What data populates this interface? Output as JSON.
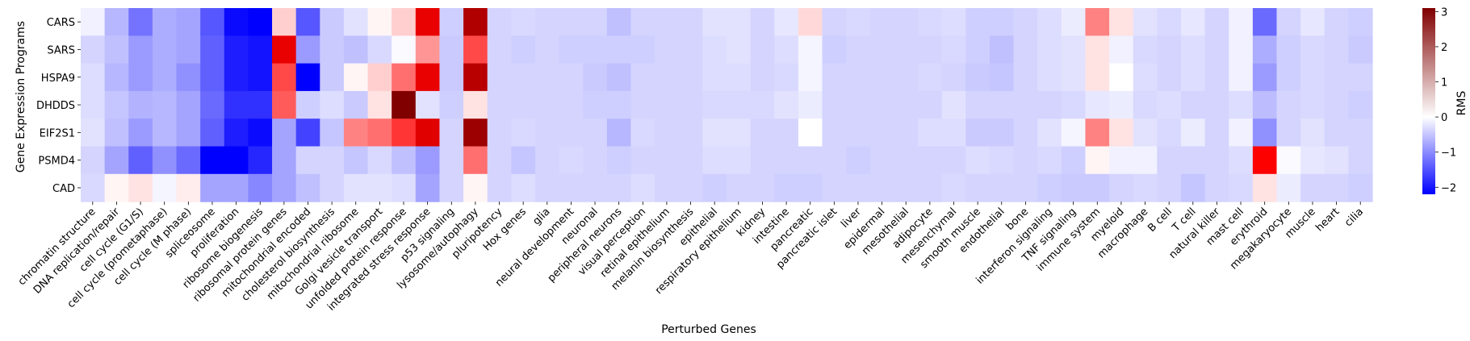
{
  "chart_data": {
    "type": "heatmap",
    "xlabel": "Perturbed Genes",
    "ylabel": "Gene Expression Programs",
    "colorbar_label": "RMS",
    "colormap": "bwr",
    "vmin": -2.2,
    "vmax": 3.1,
    "colorbar_ticks": [
      -2,
      -1,
      0,
      1,
      2,
      3
    ],
    "rows": [
      "CARS",
      "SARS",
      "HSPA9",
      "DHDDS",
      "EIF2S1",
      "PSMD4",
      "CAD"
    ],
    "columns": [
      "chromatin structure",
      "DNA replication/repair",
      "cell cycle (G1/S)",
      "cell cycle (prometaphase)",
      "cell cycle (M phase)",
      "spliceosome",
      "proliferation",
      "ribosome biogenesis",
      "ribosomal protein genes",
      "mitochondrial encoded",
      "cholesterol biosynthesis",
      "mitochondrial ribosome",
      "Golgi vesicle transport",
      "unfolded protein response",
      "integrated stress response",
      "p53 signaling",
      "lysosome/autophagy",
      "pluripotency",
      "Hox genes",
      "glia",
      "neural development",
      "neuronal",
      "peripheral neurons",
      "visual perception",
      "retinal epithelium",
      "melanin biosynthesis",
      "epithelial",
      "respiratory epithelium",
      "kidney",
      "intestine",
      "pancreatic",
      "pancreatic islet",
      "liver",
      "epidermal",
      "mesothelial",
      "adipocyte",
      "mesenchymal",
      "smooth muscle",
      "endothelial",
      "bone",
      "interferon signaling",
      "TNF signaling",
      "immune system",
      "myeloid",
      "macrophage",
      "B cell",
      "T cell",
      "natural killer",
      "mast cell",
      "erythroid",
      "megakaryocyte",
      "muscle",
      "heart",
      "cilia"
    ],
    "values": [
      [
        0.3,
        -0.3,
        -1.0,
        -0.4,
        -0.5,
        -1.3,
        -2.1,
        -2.2,
        0.7,
        -1.3,
        -0.1,
        0.15,
        0.5,
        0.7,
        2.0,
        -0.05,
        2.6,
        0.0,
        0.05,
        0.0,
        0.0,
        0.0,
        -0.2,
        0.0,
        0.0,
        0.0,
        0.15,
        0.15,
        0.0,
        0.2,
        0.65,
        0.0,
        0.05,
        0.0,
        0.0,
        0.05,
        0.1,
        -0.05,
        -0.05,
        0.0,
        0.1,
        0.25,
        1.1,
        0.6,
        0.15,
        0.05,
        0.2,
        0.0,
        0.3,
        -1.1,
        0.0,
        0.2,
        0.0,
        -0.05
      ],
      [
        0.0,
        -0.2,
        -0.6,
        -0.4,
        -0.5,
        -1.2,
        -1.9,
        -2.0,
        2.0,
        -0.6,
        -0.1,
        -0.2,
        0.05,
        0.4,
        1.0,
        -0.1,
        1.4,
        0.0,
        -0.05,
        0.0,
        -0.05,
        -0.05,
        -0.05,
        -0.05,
        0.0,
        0.0,
        0.1,
        0.15,
        0.0,
        0.1,
        0.35,
        -0.05,
        0.0,
        0.0,
        0.0,
        0.0,
        0.05,
        -0.05,
        -0.2,
        0.0,
        0.1,
        0.15,
        0.6,
        0.3,
        0.05,
        0.0,
        0.1,
        0.0,
        0.3,
        -0.4,
        -0.05,
        0.05,
        0.0,
        -0.1
      ],
      [
        0.1,
        -0.3,
        -0.6,
        -0.4,
        -0.7,
        -1.2,
        -1.9,
        -2.0,
        1.4,
        -2.2,
        -0.1,
        0.5,
        0.7,
        1.2,
        2.0,
        -0.1,
        2.5,
        0.0,
        0.0,
        0.0,
        0.0,
        -0.1,
        -0.2,
        0.0,
        0.0,
        0.0,
        0.1,
        0.1,
        0.0,
        0.05,
        0.35,
        0.0,
        0.0,
        0.0,
        0.0,
        0.05,
        0.0,
        -0.1,
        -0.15,
        0.0,
        0.1,
        0.15,
        0.6,
        0.45,
        0.1,
        0.0,
        0.1,
        0.0,
        0.3,
        -0.6,
        -0.05,
        0.05,
        0.0,
        0.0
      ],
      [
        0.1,
        -0.15,
        -0.35,
        -0.3,
        -0.5,
        -1.1,
        -1.7,
        -1.7,
        1.3,
        -0.05,
        0.1,
        -0.1,
        0.6,
        3.1,
        0.15,
        -0.05,
        0.6,
        0.0,
        0.0,
        0.0,
        0.0,
        -0.05,
        -0.05,
        0.0,
        0.0,
        0.0,
        0.05,
        0.05,
        0.05,
        0.15,
        0.25,
        0.0,
        0.0,
        0.0,
        0.0,
        0.0,
        0.15,
        0.0,
        0.0,
        0.0,
        0.0,
        0.05,
        0.2,
        0.25,
        0.05,
        0.1,
        0.0,
        0.0,
        0.1,
        -0.25,
        0.0,
        0.05,
        0.0,
        -0.05
      ],
      [
        0.15,
        -0.2,
        -0.6,
        -0.3,
        -0.5,
        -1.2,
        -1.9,
        -2.1,
        -0.5,
        -1.5,
        -0.15,
        1.1,
        1.2,
        1.5,
        2.1,
        0.0,
        2.8,
        0.0,
        0.05,
        0.0,
        0.0,
        0.0,
        -0.3,
        0.05,
        0.0,
        0.0,
        0.15,
        0.15,
        0.0,
        0.0,
        0.45,
        0.0,
        0.0,
        0.0,
        0.0,
        0.1,
        0.1,
        -0.1,
        -0.1,
        0.0,
        0.15,
        0.35,
        1.1,
        0.6,
        0.15,
        0.05,
        0.25,
        0.0,
        0.3,
        -0.7,
        0.0,
        0.15,
        0.0,
        0.0
      ],
      [
        0.0,
        -0.5,
        -1.2,
        -0.7,
        -1.1,
        -2.2,
        -2.2,
        -1.8,
        -0.5,
        0.0,
        0.0,
        -0.15,
        0.05,
        -0.2,
        -0.6,
        0.0,
        1.2,
        0.0,
        -0.15,
        0.0,
        0.05,
        0.0,
        -0.05,
        0.0,
        0.0,
        0.0,
        0.1,
        0.1,
        0.0,
        0.0,
        0.0,
        0.0,
        -0.05,
        0.0,
        0.0,
        0.0,
        0.0,
        0.1,
        0.05,
        0.0,
        0.05,
        -0.05,
        0.5,
        0.3,
        0.3,
        0.0,
        0.0,
        0.0,
        0.1,
        1.8,
        0.4,
        0.2,
        0.15,
        0.0
      ],
      [
        0.05,
        0.5,
        0.6,
        0.35,
        0.55,
        -0.5,
        -0.5,
        -0.8,
        -0.5,
        -0.2,
        0.0,
        0.15,
        0.15,
        0.1,
        -0.5,
        0.0,
        0.5,
        0.0,
        0.1,
        0.0,
        0.0,
        0.0,
        0.0,
        0.1,
        0.0,
        0.0,
        -0.05,
        0.0,
        0.0,
        -0.05,
        -0.05,
        0.0,
        0.0,
        0.0,
        0.0,
        0.0,
        0.05,
        0.0,
        0.0,
        0.0,
        -0.05,
        -0.1,
        -0.1,
        0.0,
        0.05,
        0.0,
        -0.15,
        0.0,
        0.05,
        0.6,
        0.25,
        0.0,
        0.0,
        -0.05
      ]
    ]
  }
}
